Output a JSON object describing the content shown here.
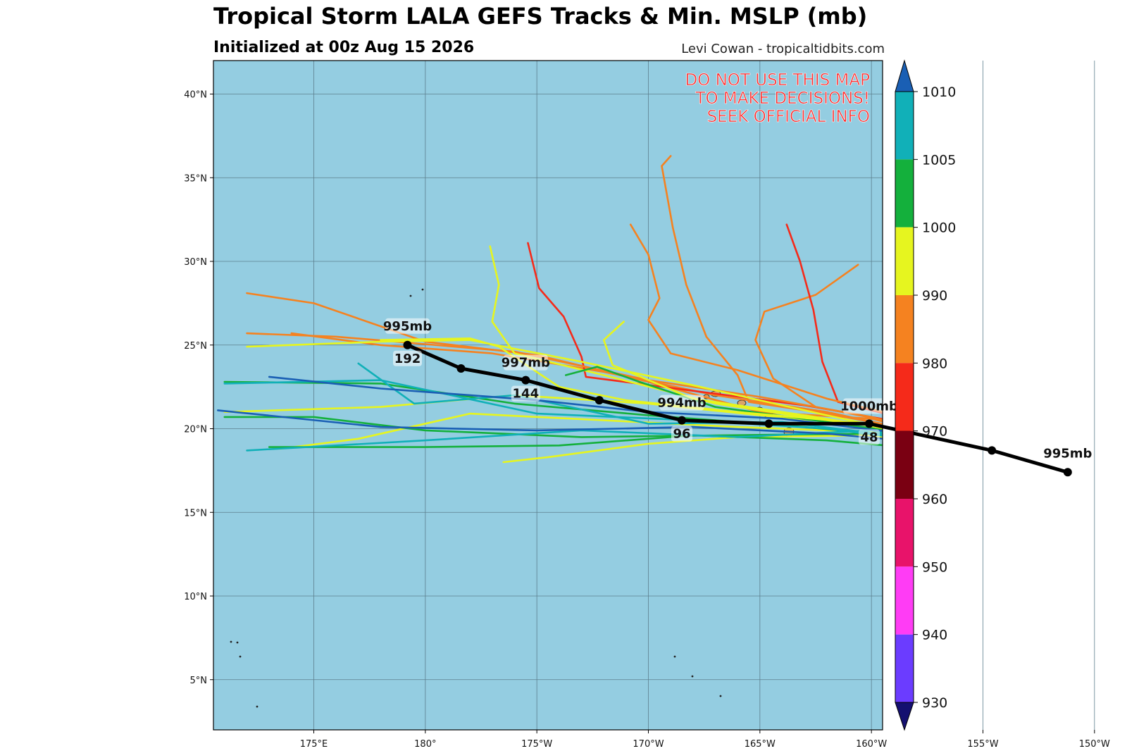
{
  "header": {
    "title": "Tropical Storm LALA GEFS Tracks & Min. MSLP (mb)",
    "subtitle": "Initialized at 00z Aug 15 2026",
    "credit": "Levi Cowan - tropicaltidbits.com"
  },
  "warning": {
    "lines": [
      "DO NOT USE THIS MAP",
      "TO MAKE DECISIONS!",
      "SEEK OFFICIAL INFO"
    ],
    "color": "#ff2a2a"
  },
  "map": {
    "ocean_color": "#94cde1",
    "lon_range": [
      -179.5,
      -149.5
    ],
    "lat_range": [
      2,
      42
    ],
    "lat_ticks": [
      {
        "value": 40,
        "label": "40°N"
      },
      {
        "value": 35,
        "label": "35°N"
      },
      {
        "value": 30,
        "label": "30°N"
      },
      {
        "value": 25,
        "label": "25°N"
      },
      {
        "value": 20,
        "label": "20°N"
      },
      {
        "value": 15,
        "label": "15°N"
      },
      {
        "value": 10,
        "label": "10°N"
      },
      {
        "value": 5,
        "label": "5°N"
      }
    ],
    "lon_ticks": [
      {
        "value": -175,
        "label": "175°E"
      },
      {
        "value": -170,
        "label": "180°"
      },
      {
        "value": -165,
        "label": "175°W"
      },
      {
        "value": -160,
        "label": "170°W"
      },
      {
        "value": -155,
        "label": "165°W"
      },
      {
        "value": -150,
        "label": "160°W"
      },
      {
        "value": -145,
        "label": "155°W"
      },
      {
        "value": -140,
        "label": "150°W"
      }
    ]
  },
  "colorbar": {
    "levels": [
      {
        "value": 1010,
        "label": "1010"
      },
      {
        "value": 1005,
        "label": "1005"
      },
      {
        "value": 1000,
        "label": "1000"
      },
      {
        "value": 990,
        "label": "990"
      },
      {
        "value": 980,
        "label": "980"
      },
      {
        "value": 970,
        "label": "970"
      },
      {
        "value": 960,
        "label": "960"
      },
      {
        "value": 950,
        "label": "950"
      },
      {
        "value": 940,
        "label": "940"
      },
      {
        "value": 930,
        "label": "930"
      }
    ],
    "colors": [
      "#1a5fb4",
      "#11b0b8",
      "#14b03c",
      "#e6f51f",
      "#f58220",
      "#f52a1a",
      "#7a0012",
      "#e8136a",
      "#ff3cf5",
      "#6b3cff",
      "#2c1fc8",
      "#141070"
    ]
  },
  "mean_track": {
    "color": "#000000",
    "points": [
      {
        "lon": -170.8,
        "lat": 25.0
      },
      {
        "lon": -168.4,
        "lat": 23.6
      },
      {
        "lon": -165.5,
        "lat": 22.9
      },
      {
        "lon": -162.2,
        "lat": 21.7
      },
      {
        "lon": -158.5,
        "lat": 20.5
      },
      {
        "lon": -154.6,
        "lat": 20.3
      },
      {
        "lon": -150.1,
        "lat": 20.3
      },
      {
        "lon": -144.6,
        "lat": 18.7
      },
      {
        "lon": -141.2,
        "lat": 17.4
      }
    ],
    "labels": [
      {
        "text": "995mb",
        "lon": -170.8,
        "lat": 25.0,
        "dx": 0,
        "dy": -22
      },
      {
        "text": "192",
        "lon": -170.8,
        "lat": 25.0,
        "dx": 0,
        "dy": 24
      },
      {
        "text": "997mb",
        "lon": -165.5,
        "lat": 22.9,
        "dx": 0,
        "dy": -20
      },
      {
        "text": "144",
        "lon": -165.5,
        "lat": 22.9,
        "dx": 0,
        "dy": 24
      },
      {
        "text": "994mb",
        "lon": -158.5,
        "lat": 20.5,
        "dx": 0,
        "dy": -20
      },
      {
        "text": "96",
        "lon": -158.5,
        "lat": 20.5,
        "dx": 0,
        "dy": 24
      },
      {
        "text": "1000mb",
        "lon": -150.1,
        "lat": 20.3,
        "dx": 0,
        "dy": -20
      },
      {
        "text": "48",
        "lon": -150.1,
        "lat": 20.3,
        "dx": 0,
        "dy": 24
      },
      {
        "text": "995mb",
        "lon": -141.2,
        "lat": 17.4,
        "dx": 0,
        "dy": -22
      }
    ]
  },
  "members": [
    {
      "color": "#f58220",
      "points": [
        [
          -141.6,
          17.3
        ],
        [
          -144.6,
          18.8
        ],
        [
          -150,
          20.6
        ],
        [
          -155,
          21.0
        ],
        [
          -160,
          22.8
        ],
        [
          -165,
          24.4
        ],
        [
          -170,
          25.2
        ],
        [
          -175,
          27.5
        ],
        [
          -178,
          28.1
        ]
      ]
    },
    {
      "color": "#f58220",
      "points": [
        [
          -141.6,
          17.3
        ],
        [
          -145,
          19.0
        ],
        [
          -152,
          21.0
        ],
        [
          -157,
          22.0
        ],
        [
          -162,
          23.4
        ],
        [
          -167,
          24.5
        ],
        [
          -172,
          25.0
        ],
        [
          -176,
          25.7
        ]
      ]
    },
    {
      "color": "#f58220",
      "points": [
        [
          -141.6,
          17.3
        ],
        [
          -146,
          19.4
        ],
        [
          -152,
          20.9
        ],
        [
          -155.5,
          21.6
        ],
        [
          -156.0,
          23.2
        ],
        [
          -157.4,
          25.5
        ],
        [
          -158.3,
          28.6
        ],
        [
          -158.9,
          32.0
        ],
        [
          -159.4,
          35.7
        ],
        [
          -159.0,
          36.3
        ]
      ]
    },
    {
      "color": "#f52a1a",
      "points": [
        [
          -141.6,
          17.3
        ],
        [
          -147,
          20.0
        ],
        [
          -153,
          21.4
        ],
        [
          -162.8,
          23.1
        ],
        [
          -163,
          24.3
        ],
        [
          -163.8,
          26.7
        ],
        [
          -164.9,
          28.4
        ],
        [
          -165.4,
          31.1
        ]
      ]
    },
    {
      "color": "#f58220",
      "points": [
        [
          -141.6,
          17.3
        ],
        [
          -147,
          19.9
        ],
        [
          -152.5,
          21.3
        ],
        [
          -154.4,
          23.0
        ],
        [
          -155.2,
          25.3
        ],
        [
          -154.8,
          27.0
        ],
        [
          -152.5,
          28.0
        ],
        [
          -150.6,
          29.8
        ]
      ]
    },
    {
      "color": "#f52a1a",
      "points": [
        [
          -141.6,
          17.3
        ],
        [
          -147,
          20.1
        ],
        [
          -151.5,
          21.6
        ],
        [
          -152.2,
          24.0
        ],
        [
          -152.6,
          27.1
        ],
        [
          -153.2,
          30.0
        ],
        [
          -153.8,
          32.2
        ]
      ]
    },
    {
      "color": "#f58220",
      "points": [
        [
          -141.6,
          17.3
        ],
        [
          -146,
          19.9
        ],
        [
          -152,
          21.8
        ],
        [
          -156,
          23.5
        ],
        [
          -159,
          24.5
        ],
        [
          -160,
          26.5
        ],
        [
          -159.5,
          27.8
        ],
        [
          -160.0,
          30.4
        ],
        [
          -160.8,
          32.2
        ]
      ]
    },
    {
      "color": "#f58220",
      "points": [
        [
          -141.6,
          17.3
        ],
        [
          -145,
          18.9
        ],
        [
          -150,
          20.7
        ],
        [
          -155,
          21.9
        ],
        [
          -160,
          22.9
        ],
        [
          -166,
          24.6
        ],
        [
          -174,
          25.5
        ],
        [
          -178,
          25.7
        ]
      ]
    },
    {
      "color": "#e6f51f",
      "points": [
        [
          -141.2,
          17.2
        ],
        [
          -145,
          18.7
        ],
        [
          -150,
          20.2
        ],
        [
          -155,
          20.8
        ],
        [
          -160,
          21.5
        ],
        [
          -166,
          22.0
        ],
        [
          -172,
          21.3
        ],
        [
          -179,
          21.0
        ]
      ]
    },
    {
      "color": "#e6f51f",
      "points": [
        [
          -141.2,
          17.2
        ],
        [
          -145,
          18.5
        ],
        [
          -150,
          19.8
        ],
        [
          -156,
          20.1
        ],
        [
          -162,
          20.5
        ],
        [
          -168,
          20.9
        ],
        [
          -173,
          19.4
        ],
        [
          -176.5,
          18.8
        ]
      ]
    },
    {
      "color": "#e6f51f",
      "points": [
        [
          -141.2,
          17.2
        ],
        [
          -146,
          18.9
        ],
        [
          -152,
          20.5
        ],
        [
          -157,
          21.5
        ],
        [
          -162,
          23.2
        ],
        [
          -166,
          24.5
        ],
        [
          -167,
          26.4
        ],
        [
          -166.7,
          28.6
        ],
        [
          -167.1,
          30.9
        ]
      ]
    },
    {
      "color": "#e6f51f",
      "points": [
        [
          -141.2,
          17.2
        ],
        [
          -145,
          18.6
        ],
        [
          -150,
          19.6
        ],
        [
          -156,
          19.5
        ],
        [
          -160,
          19.1
        ],
        [
          -164.5,
          18.3
        ],
        [
          -166.5,
          18.0
        ]
      ]
    },
    {
      "color": "#e6f51f",
      "points": [
        [
          -141.2,
          17.2
        ],
        [
          -146,
          19.1
        ],
        [
          -152,
          20.8
        ],
        [
          -158,
          22.6
        ],
        [
          -163,
          24.0
        ],
        [
          -168,
          25.3
        ],
        [
          -172,
          25.2
        ],
        [
          -178,
          24.9
        ]
      ]
    },
    {
      "color": "#14b03c",
      "points": [
        [
          -141.2,
          17.2
        ],
        [
          -145,
          18.6
        ],
        [
          -150,
          19.7
        ],
        [
          -157,
          19.6
        ],
        [
          -163,
          19.5
        ],
        [
          -170,
          19.9
        ],
        [
          -175,
          20.7
        ],
        [
          -179,
          20.7
        ]
      ]
    },
    {
      "color": "#14b03c",
      "points": [
        [
          -141.2,
          17.2
        ],
        [
          -146,
          19.2
        ],
        [
          -153,
          20.1
        ],
        [
          -160,
          20.8
        ],
        [
          -166,
          21.5
        ],
        [
          -172,
          22.7
        ],
        [
          -179,
          22.8
        ]
      ]
    },
    {
      "color": "#14b03c",
      "points": [
        [
          -141.2,
          17.2
        ],
        [
          -145,
          18.5
        ],
        [
          -152,
          19.3
        ],
        [
          -158,
          19.6
        ],
        [
          -164,
          19.0
        ],
        [
          -170,
          18.9
        ],
        [
          -177,
          18.9
        ]
      ]
    },
    {
      "color": "#14b03c",
      "points": [
        [
          -141.2,
          17.2
        ],
        [
          -146,
          19.3
        ],
        [
          -152,
          20.4
        ],
        [
          -157,
          21.3
        ],
        [
          -160.4,
          22.8
        ],
        [
          -162.3,
          23.7
        ],
        [
          -163.7,
          23.2
        ]
      ]
    },
    {
      "color": "#11b0b8",
      "points": [
        [
          -141.2,
          17.2
        ],
        [
          -145,
          18.5
        ],
        [
          -150,
          19.9
        ],
        [
          -156,
          19.5
        ],
        [
          -163,
          19.9
        ],
        [
          -170,
          19.3
        ],
        [
          -178,
          18.7
        ]
      ]
    },
    {
      "color": "#11b0b8",
      "points": [
        [
          -141.2,
          17.2
        ],
        [
          -146,
          19.0
        ],
        [
          -152,
          20.0
        ],
        [
          -158,
          20.5
        ],
        [
          -165,
          20.9
        ],
        [
          -172,
          22.9
        ],
        [
          -179,
          22.7
        ]
      ]
    },
    {
      "color": "#11b0b8",
      "points": [
        [
          -141.2,
          17.2
        ],
        [
          -146,
          19.1
        ],
        [
          -154,
          20.4
        ],
        [
          -160,
          20.3
        ],
        [
          -166,
          22.0
        ],
        [
          -170.5,
          21.5
        ],
        [
          -173,
          23.9
        ]
      ]
    },
    {
      "color": "#1a5fb4",
      "points": [
        [
          -141.2,
          17.2
        ],
        [
          -146,
          19.0
        ],
        [
          -152,
          19.7
        ],
        [
          -158,
          20.1
        ],
        [
          -165,
          19.9
        ],
        [
          -172,
          20.1
        ],
        [
          -179.3,
          21.1
        ]
      ]
    },
    {
      "color": "#1a5fb4",
      "points": [
        [
          -141.2,
          17.2
        ],
        [
          -146,
          19.3
        ],
        [
          -154,
          20.6
        ],
        [
          -160,
          21.0
        ],
        [
          -165,
          21.7
        ],
        [
          -172,
          22.4
        ],
        [
          -177,
          23.1
        ]
      ]
    },
    {
      "color": "#e6f51f",
      "points": [
        [
          -141.2,
          17.2
        ],
        [
          -145,
          18.9
        ],
        [
          -151,
          20.4
        ],
        [
          -156,
          21.0
        ],
        [
          -161,
          21.7
        ],
        [
          -164,
          22.5
        ],
        [
          -166.7,
          24.9
        ],
        [
          -168,
          25.4
        ],
        [
          -172,
          25.3
        ]
      ]
    },
    {
      "color": "#e6f51f",
      "points": [
        [
          -141.2,
          17.2
        ],
        [
          -146,
          19.3
        ],
        [
          -153,
          20.8
        ],
        [
          -158,
          21.8
        ],
        [
          -161.6,
          23.8
        ],
        [
          -162.0,
          25.3
        ],
        [
          -161.1,
          26.4
        ]
      ]
    }
  ]
}
